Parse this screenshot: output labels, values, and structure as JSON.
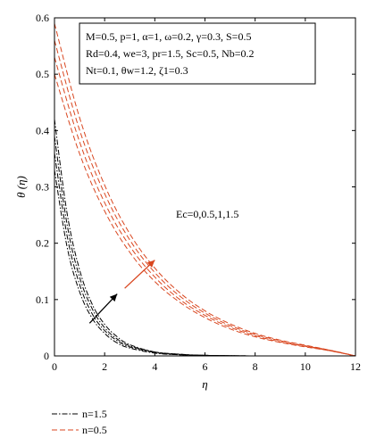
{
  "chart_data": {
    "type": "line",
    "xlabel": "η",
    "ylabel": "θ (η)",
    "xlim": [
      0,
      12
    ],
    "ylim": [
      0,
      0.6
    ],
    "x_ticks": [
      "0",
      "2",
      "4",
      "6",
      "8",
      "10",
      "12"
    ],
    "y_ticks": [
      "0",
      "0.1",
      "0.2",
      "0.3",
      "0.4",
      "0.5",
      "0.6"
    ],
    "parameters": [
      "M=0.5, p=1, α=1, ω=0.2, γ=0.3, S=0.5",
      "Rd=0.4, we=3, pr=1.5, Sc=0.5, Nb=0.2",
      "Nt=0.1, θw=1.2, ζ1=0.3"
    ],
    "annotation": "Ec=0,0.5,1,1.5",
    "colors": {
      "n15": "#000000",
      "n05": "#d9461f"
    },
    "groups": [
      {
        "name": "n=1.5",
        "color": "#000000",
        "dash": "dash-dot",
        "series": [
          {
            "ec": 0,
            "x": [
              0,
              0.5,
              1,
              1.5,
              2,
              2.5,
              3,
              4,
              5,
              6,
              8,
              10,
              12
            ],
            "y": [
              0.33,
              0.194,
              0.114,
              0.067,
              0.04,
              0.023,
              0.014,
              0.005,
              0.002,
              0.001,
              0,
              0,
              0
            ]
          },
          {
            "ec": 0.5,
            "x": [
              0,
              0.5,
              1,
              1.5,
              2,
              2.5,
              3,
              4,
              5,
              6,
              8,
              10,
              12
            ],
            "y": [
              0.36,
              0.214,
              0.127,
              0.075,
              0.045,
              0.027,
              0.016,
              0.006,
              0.002,
              0.001,
              0,
              0,
              0
            ]
          },
          {
            "ec": 1,
            "x": [
              0,
              0.5,
              1,
              1.5,
              2,
              2.5,
              3,
              4,
              5,
              6,
              8,
              10,
              12
            ],
            "y": [
              0.39,
              0.234,
              0.14,
              0.084,
              0.05,
              0.03,
              0.018,
              0.007,
              0.003,
              0.001,
              0,
              0,
              0
            ]
          },
          {
            "ec": 1.5,
            "x": [
              0,
              0.5,
              1,
              1.5,
              2,
              2.5,
              3,
              4,
              5,
              6,
              8,
              10,
              12
            ],
            "y": [
              0.42,
              0.254,
              0.153,
              0.092,
              0.056,
              0.034,
              0.02,
              0.007,
              0.003,
              0.001,
              0,
              0,
              0
            ]
          }
        ]
      },
      {
        "name": "n=0.5",
        "color": "#d9461f",
        "dash": "dashed",
        "series": [
          {
            "ec": 0,
            "x": [
              0,
              1,
              2,
              3,
              4,
              5,
              6,
              7,
              8,
              9,
              10,
              11,
              12
            ],
            "y": [
              0.5,
              0.359,
              0.257,
              0.184,
              0.132,
              0.095,
              0.068,
              0.048,
              0.034,
              0.024,
              0.016,
              0.009,
              0
            ]
          },
          {
            "ec": 0.5,
            "x": [
              0,
              1,
              2,
              3,
              4,
              5,
              6,
              7,
              8,
              9,
              10,
              11,
              12
            ],
            "y": [
              0.53,
              0.38,
              0.272,
              0.195,
              0.14,
              0.1,
              0.072,
              0.051,
              0.036,
              0.025,
              0.017,
              0.009,
              0
            ]
          },
          {
            "ec": 1,
            "x": [
              0,
              1,
              2,
              3,
              4,
              5,
              6,
              7,
              8,
              9,
              10,
              11,
              12
            ],
            "y": [
              0.56,
              0.401,
              0.288,
              0.206,
              0.148,
              0.106,
              0.076,
              0.054,
              0.038,
              0.027,
              0.018,
              0.01,
              0
            ]
          },
          {
            "ec": 1.5,
            "x": [
              0,
              1,
              2,
              3,
              4,
              5,
              6,
              7,
              8,
              9,
              10,
              11,
              12
            ],
            "y": [
              0.59,
              0.423,
              0.303,
              0.217,
              0.156,
              0.112,
              0.08,
              0.057,
              0.04,
              0.028,
              0.019,
              0.01,
              0
            ]
          }
        ]
      }
    ],
    "arrows": [
      {
        "color": "#000000",
        "from": [
          1.4,
          0.058
        ],
        "to": [
          2.5,
          0.11
        ]
      },
      {
        "color": "#d9461f",
        "from": [
          2.8,
          0.12
        ],
        "to": [
          4.0,
          0.17
        ]
      }
    ],
    "legend": [
      {
        "label": "n=1.5",
        "color": "#000000",
        "dash": "dash-dot"
      },
      {
        "label": "n=0.5",
        "color": "#d9461f",
        "dash": "dashed"
      }
    ],
    "legend_position": "below-left"
  }
}
